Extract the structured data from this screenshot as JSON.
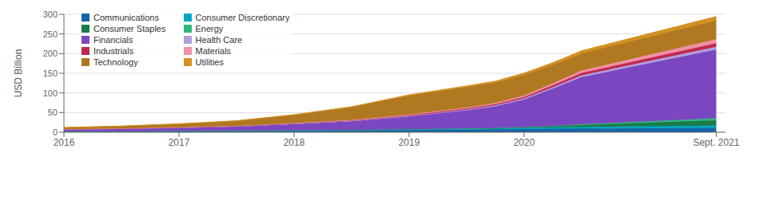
{
  "chart_data": {
    "type": "area",
    "stacked": true,
    "ylabel": "USD Billion",
    "x": [
      2016,
      2016.5,
      2017,
      2017.5,
      2018,
      2018.5,
      2019,
      2019.5,
      2019.75,
      2020,
      2020.25,
      2020.5,
      2021.67
    ],
    "series": [
      {
        "name": "Communications",
        "color": "#1565a8",
        "values": [
          1.5,
          1.8,
          2.2,
          2.8,
          3.5,
          4.2,
          5.5,
          6.5,
          7.0,
          8.0,
          9.0,
          9.5,
          11.0
        ]
      },
      {
        "name": "Consumer Discretionary",
        "color": "#00a8c0",
        "values": [
          0.2,
          0.3,
          0.4,
          0.5,
          0.8,
          1.0,
          1.5,
          2.0,
          2.2,
          2.8,
          3.2,
          3.8,
          5.5
        ]
      },
      {
        "name": "Consumer Staples",
        "color": "#1a7a4a",
        "values": [
          0.1,
          0.1,
          0.2,
          0.2,
          0.3,
          0.4,
          0.5,
          0.8,
          1.0,
          1.5,
          2.5,
          5.0,
          14.0
        ]
      },
      {
        "name": "Energy",
        "color": "#2db87a",
        "values": [
          0.05,
          0.05,
          0.08,
          0.1,
          0.15,
          0.2,
          0.3,
          0.5,
          0.6,
          0.8,
          1.2,
          2.0,
          5.0
        ]
      },
      {
        "name": "Financials",
        "color": "#7b47c0",
        "values": [
          5.0,
          6.5,
          8.5,
          11.0,
          16.0,
          22.0,
          32.0,
          46.0,
          55.0,
          70.0,
          95.0,
          120.0,
          175.0
        ]
      },
      {
        "name": "Health Care",
        "color": "#b09fdd",
        "values": [
          0.2,
          0.3,
          0.4,
          0.5,
          0.8,
          1.0,
          1.5,
          2.0,
          2.5,
          3.0,
          3.8,
          4.5,
          7.0
        ]
      },
      {
        "name": "Industrials",
        "color": "#c0294e",
        "values": [
          0.3,
          0.4,
          0.5,
          0.7,
          1.0,
          1.3,
          1.8,
          2.5,
          3.0,
          3.8,
          4.8,
          6.0,
          9.0
        ]
      },
      {
        "name": "Materials",
        "color": "#f090a8",
        "values": [
          0.2,
          0.3,
          0.4,
          0.6,
          0.9,
          1.2,
          1.8,
          2.5,
          3.0,
          4.0,
          5.0,
          6.5,
          10.0
        ]
      },
      {
        "name": "Technology",
        "color": "#b07820",
        "values": [
          4.0,
          5.5,
          8.0,
          12.0,
          20.0,
          32.0,
          48.0,
          52.0,
          52.0,
          52.0,
          47.0,
          43.0,
          48.0
        ]
      },
      {
        "name": "Utilities",
        "color": "#d49020",
        "values": [
          0.4,
          0.5,
          0.7,
          0.9,
          1.2,
          1.6,
          2.2,
          3.0,
          3.5,
          4.5,
          5.5,
          7.0,
          10.0
        ]
      }
    ],
    "xlim": [
      2016,
      2021.75
    ],
    "xticks": [
      2016,
      2017,
      2018,
      2019,
      2020,
      {
        "value": 2021.67,
        "label": "Sept. 2021"
      }
    ],
    "ylim": [
      0,
      300
    ],
    "yticks": [
      0,
      50,
      100,
      150,
      200,
      250,
      300
    ],
    "grid": true,
    "legend": "upper left"
  }
}
